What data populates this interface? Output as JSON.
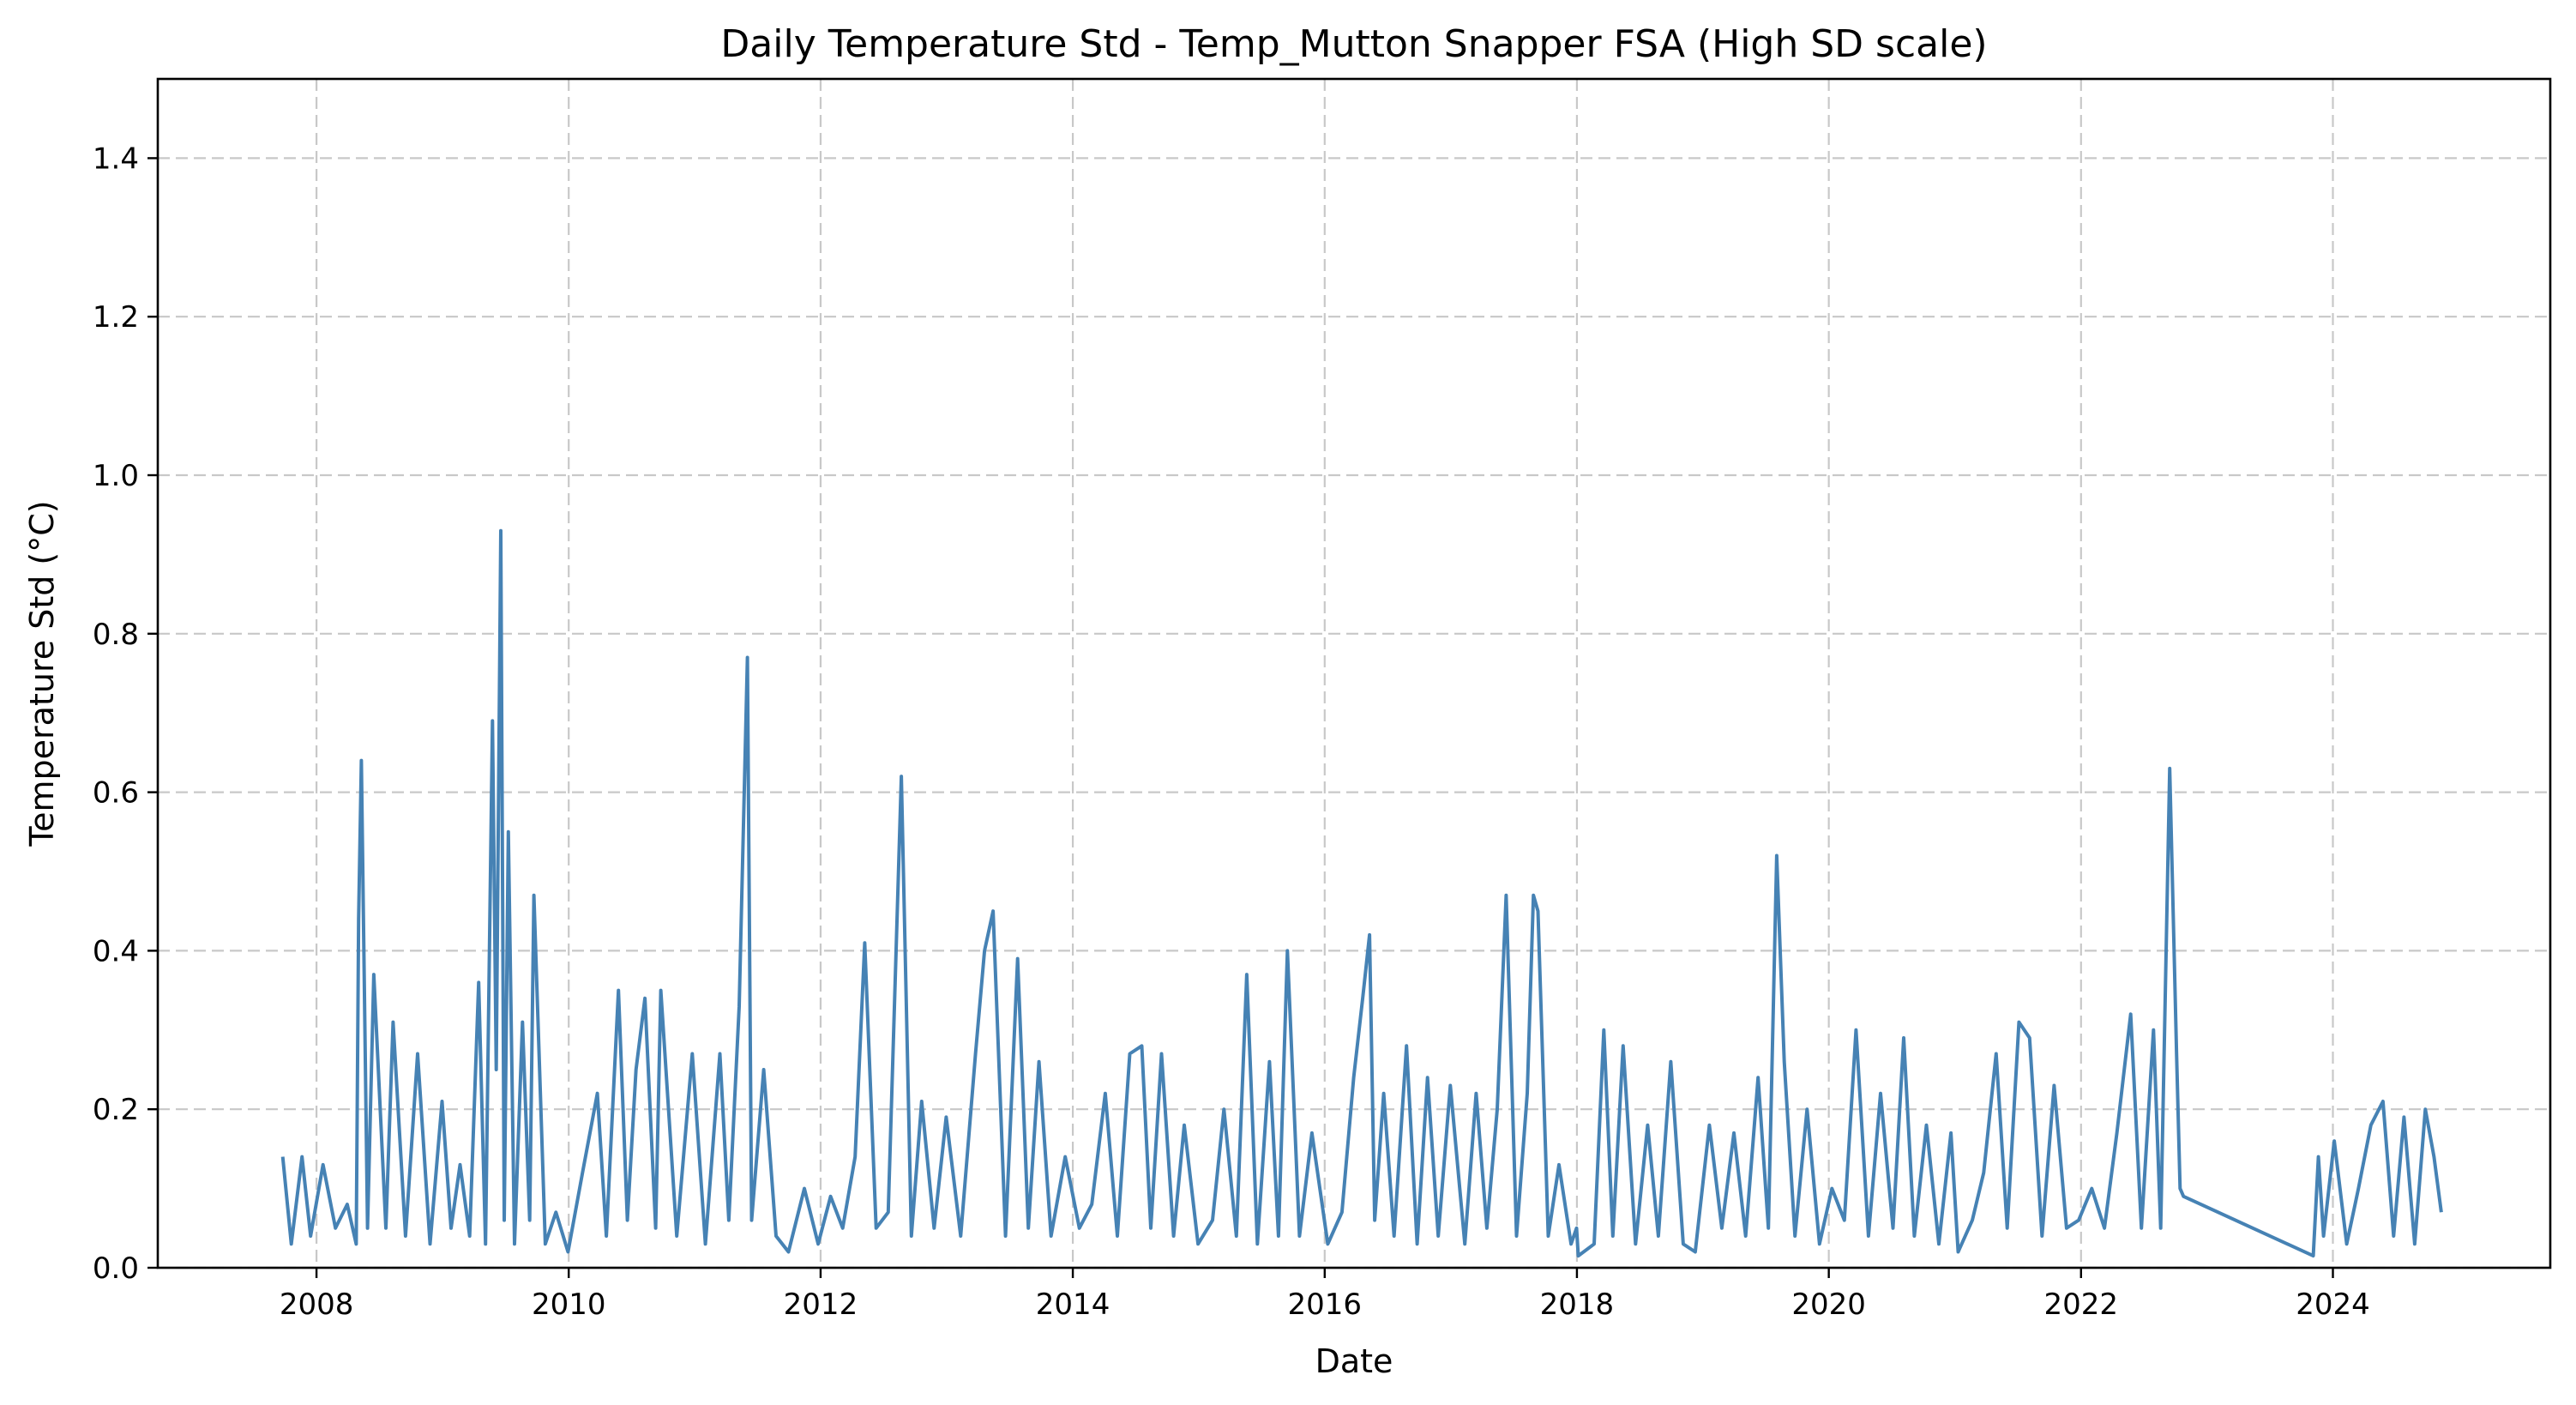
{
  "chart_data": {
    "type": "line",
    "title": "Daily Temperature Std - Temp_Mutton Snapper FSA (High SD scale)",
    "xlabel": "Date",
    "ylabel": "Temperature Std (°C)",
    "xlim": [
      "2006-09-28",
      "2025-09-22"
    ],
    "ylim": [
      0,
      1.5
    ],
    "x_ticks": [
      "2008",
      "2010",
      "2012",
      "2014",
      "2016",
      "2018",
      "2020",
      "2022",
      "2024"
    ],
    "y_ticks": [
      "0.0",
      "0.2",
      "0.4",
      "0.6",
      "0.8",
      "1.0",
      "1.2",
      "1.4"
    ],
    "grid": true,
    "line_color": "#4682b4",
    "series": [
      {
        "x": [
          "2007-09-25",
          "2007-10-20",
          "2007-11-20",
          "2007-12-15",
          "2008-01-20",
          "2008-02-25",
          "2008-03-30",
          "2008-04-25",
          "2008-05-02",
          "2008-05-10",
          "2008-05-28",
          "2008-06-15",
          "2008-07-20",
          "2008-08-10",
          "2008-09-15",
          "2008-10-20",
          "2008-11-25",
          "2008-12-30",
          "2009-01-25",
          "2009-02-20",
          "2009-03-20",
          "2009-04-15",
          "2009-05-05",
          "2009-05-25",
          "2009-06-05",
          "2009-06-18",
          "2009-06-28",
          "2009-07-10",
          "2009-07-28",
          "2009-08-20",
          "2009-09-10",
          "2009-09-22",
          "2009-10-25",
          "2009-11-25",
          "2009-12-30",
          "2010-02-10",
          "2010-03-25",
          "2010-04-20",
          "2010-05-25",
          "2010-06-20",
          "2010-07-15",
          "2010-08-10",
          "2010-09-10",
          "2010-09-25",
          "2010-11-10",
          "2010-12-25",
          "2011-02-01",
          "2011-03-15",
          "2011-04-10",
          "2011-05-10",
          "2011-06-03",
          "2011-06-15",
          "2011-07-20",
          "2011-08-25",
          "2011-09-30",
          "2011-11-15",
          "2011-12-25",
          "2012-01-30",
          "2012-03-05",
          "2012-04-10",
          "2012-05-08",
          "2012-06-10",
          "2012-07-15",
          "2012-08-22",
          "2012-09-20",
          "2012-10-20",
          "2012-11-25",
          "2012-12-30",
          "2013-02-10",
          "2013-03-25",
          "2013-04-20",
          "2013-05-15",
          "2013-06-20",
          "2013-07-25",
          "2013-08-25",
          "2013-09-25",
          "2013-10-30",
          "2013-12-10",
          "2014-01-20",
          "2014-02-25",
          "2014-04-05",
          "2014-05-10",
          "2014-06-15",
          "2014-07-20",
          "2014-08-15",
          "2014-09-15",
          "2014-10-20",
          "2014-11-20",
          "2014-12-30",
          "2015-02-10",
          "2015-03-15",
          "2015-04-20",
          "2015-05-20",
          "2015-06-20",
          "2015-07-25",
          "2015-08-20",
          "2015-09-15",
          "2015-10-20",
          "2015-11-25",
          "2016-01-10",
          "2016-02-20",
          "2016-03-25",
          "2016-04-20",
          "2016-05-10",
          "2016-05-25",
          "2016-06-20",
          "2016-07-20",
          "2016-08-25",
          "2016-09-25",
          "2016-10-25",
          "2016-11-25",
          "2016-12-30",
          "2017-02-10",
          "2017-03-15",
          "2017-04-15",
          "2017-05-15",
          "2017-06-10",
          "2017-07-10",
          "2017-08-10",
          "2017-08-28",
          "2017-09-10",
          "2017-10-10",
          "2017-11-10",
          "2017-12-15",
          "2017-12-31",
          "2018-01-05",
          "2018-02-20",
          "2018-03-20",
          "2018-04-15",
          "2018-05-15",
          "2018-06-20",
          "2018-07-25",
          "2018-08-25",
          "2018-09-30",
          "2018-11-05",
          "2018-12-10",
          "2019-01-20",
          "2019-02-25",
          "2019-04-01",
          "2019-05-05",
          "2019-06-10",
          "2019-07-10",
          "2019-08-03",
          "2019-08-25",
          "2019-09-25",
          "2019-10-30",
          "2019-12-05",
          "2020-01-10",
          "2020-02-15",
          "2020-03-20",
          "2020-04-25",
          "2020-05-30",
          "2020-07-05",
          "2020-08-05",
          "2020-09-05",
          "2020-10-10",
          "2020-11-15",
          "2020-12-20",
          "2021-01-10",
          "2021-02-20",
          "2021-03-25",
          "2021-04-30",
          "2021-06-01",
          "2021-07-05",
          "2021-08-05",
          "2021-09-10",
          "2021-10-15",
          "2021-11-20",
          "2021-12-25",
          "2022-02-01",
          "2022-03-10",
          "2022-04-15",
          "2022-05-25",
          "2022-06-25",
          "2022-07-30",
          "2022-08-20",
          "2022-09-15",
          "2022-10-05",
          "2022-10-15",
          "2022-10-25",
          "2023-11-05",
          "2023-11-20",
          "2023-12-05",
          "2024-01-05",
          "2024-02-10",
          "2024-03-15",
          "2024-04-20",
          "2024-05-25",
          "2024-06-25",
          "2024-07-25",
          "2024-08-25",
          "2024-09-25",
          "2024-10-20",
          "2024-11-10"
        ],
        "y": [
          0.14,
          0.03,
          0.14,
          0.04,
          0.13,
          0.05,
          0.08,
          0.03,
          0.44,
          0.64,
          0.05,
          0.37,
          0.05,
          0.31,
          0.04,
          0.27,
          0.03,
          0.21,
          0.05,
          0.13,
          0.04,
          0.36,
          0.03,
          0.69,
          0.25,
          0.93,
          0.06,
          0.55,
          0.03,
          0.31,
          0.06,
          0.47,
          0.03,
          0.07,
          0.02,
          0.12,
          0.22,
          0.04,
          0.35,
          0.06,
          0.25,
          0.34,
          0.05,
          0.35,
          0.04,
          0.27,
          0.03,
          0.27,
          0.06,
          0.33,
          0.77,
          0.06,
          0.25,
          0.04,
          0.02,
          0.1,
          0.03,
          0.09,
          0.05,
          0.14,
          0.41,
          0.05,
          0.07,
          0.62,
          0.04,
          0.21,
          0.05,
          0.19,
          0.04,
          0.27,
          0.4,
          0.45,
          0.04,
          0.39,
          0.05,
          0.26,
          0.04,
          0.14,
          0.05,
          0.08,
          0.22,
          0.04,
          0.27,
          0.28,
          0.05,
          0.27,
          0.04,
          0.18,
          0.03,
          0.06,
          0.2,
          0.04,
          0.37,
          0.03,
          0.26,
          0.04,
          0.4,
          0.04,
          0.17,
          0.03,
          0.07,
          0.24,
          0.34,
          0.42,
          0.06,
          0.22,
          0.04,
          0.28,
          0.03,
          0.24,
          0.04,
          0.23,
          0.03,
          0.22,
          0.05,
          0.2,
          0.47,
          0.04,
          0.22,
          0.47,
          0.45,
          0.04,
          0.13,
          0.03,
          0.05,
          0.015,
          0.03,
          0.3,
          0.04,
          0.28,
          0.03,
          0.18,
          0.04,
          0.26,
          0.03,
          0.02,
          0.18,
          0.05,
          0.17,
          0.04,
          0.24,
          0.05,
          0.52,
          0.26,
          0.04,
          0.2,
          0.03,
          0.1,
          0.06,
          0.3,
          0.04,
          0.22,
          0.05,
          0.29,
          0.04,
          0.18,
          0.03,
          0.17,
          0.02,
          0.06,
          0.12,
          0.27,
          0.05,
          0.31,
          0.29,
          0.04,
          0.23,
          0.05,
          0.06,
          0.1,
          0.05,
          0.17,
          0.32,
          0.05,
          0.3,
          0.05,
          0.63,
          0.27,
          0.1,
          0.09,
          0.015,
          0.14,
          0.04,
          0.16,
          0.03,
          0.1,
          0.18,
          0.21,
          0.04,
          0.19,
          0.03,
          0.2,
          0.14,
          0.07
        ]
      }
    ]
  }
}
